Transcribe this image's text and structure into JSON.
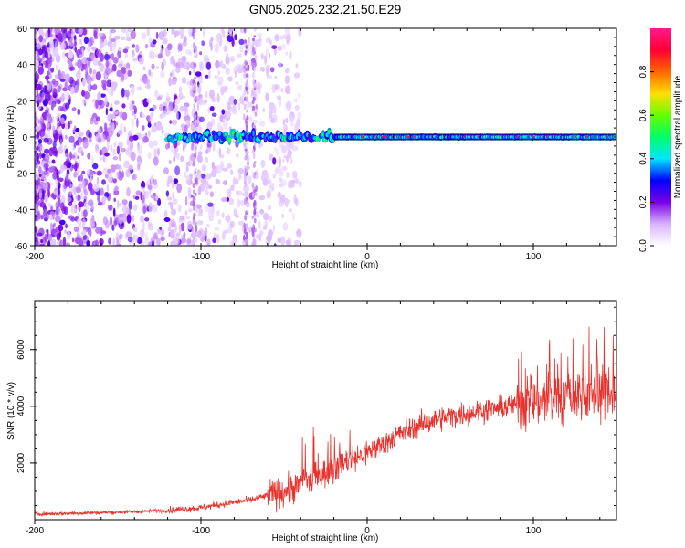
{
  "title": "GN05.2025.232.21.50.E29",
  "chart_data": [
    {
      "type": "heatmap",
      "xlabel": "Height of straight line (km)",
      "ylabel": "Frequency (Hz)",
      "xlim": [
        -200,
        150
      ],
      "ylim": [
        -60,
        60
      ],
      "xticks": [
        -200,
        -100,
        0,
        100
      ],
      "yticks": [
        -60,
        -40,
        -20,
        0,
        20,
        40,
        60
      ],
      "grid": false,
      "colorbar": {
        "label": "Normalized spectral amplitude",
        "range": [
          0,
          1
        ],
        "ticks": [
          0.0,
          0.2,
          0.4,
          0.6,
          0.8
        ],
        "colors": [
          "#ffffff",
          "#d9b3ff",
          "#7a00e6",
          "#0000ff",
          "#00e6ff",
          "#00ff66",
          "#66ff00",
          "#ffdd00",
          "#ff6600",
          "#ff0033",
          "#ff1a8c"
        ]
      },
      "features": {
        "noise_region_x": [
          -200,
          -60
        ],
        "carrier_frequency_hz": 0,
        "carrier_start_x": -120,
        "carrier_end_x": 150
      }
    },
    {
      "type": "line",
      "xlabel": "Height of straight line (km)",
      "ylabel": "SNR (10 * v/v)",
      "xlim": [
        -200,
        150
      ],
      "ylim": [
        0,
        7700
      ],
      "xticks": [
        -200,
        -100,
        0,
        100
      ],
      "yticks": [
        2000,
        4000,
        6000
      ],
      "grid": false,
      "line_color": "#e8322d",
      "series": [
        {
          "x": [
            -200,
            -180,
            -160,
            -140,
            -120,
            -100,
            -90,
            -80,
            -70,
            -60,
            -50,
            -40,
            -30,
            -20,
            -10,
            0,
            10,
            20,
            30,
            40,
            50,
            60,
            70,
            80,
            90,
            100,
            110,
            120,
            130,
            140,
            150
          ],
          "values": [
            200,
            220,
            250,
            280,
            330,
            420,
            520,
            620,
            700,
            850,
            1000,
            1200,
            1500,
            1800,
            2100,
            2350,
            2700,
            3050,
            3300,
            3500,
            3650,
            3750,
            3850,
            3950,
            4050,
            4200,
            4250,
            4350,
            4450,
            4500,
            4600
          ]
        }
      ]
    }
  ]
}
